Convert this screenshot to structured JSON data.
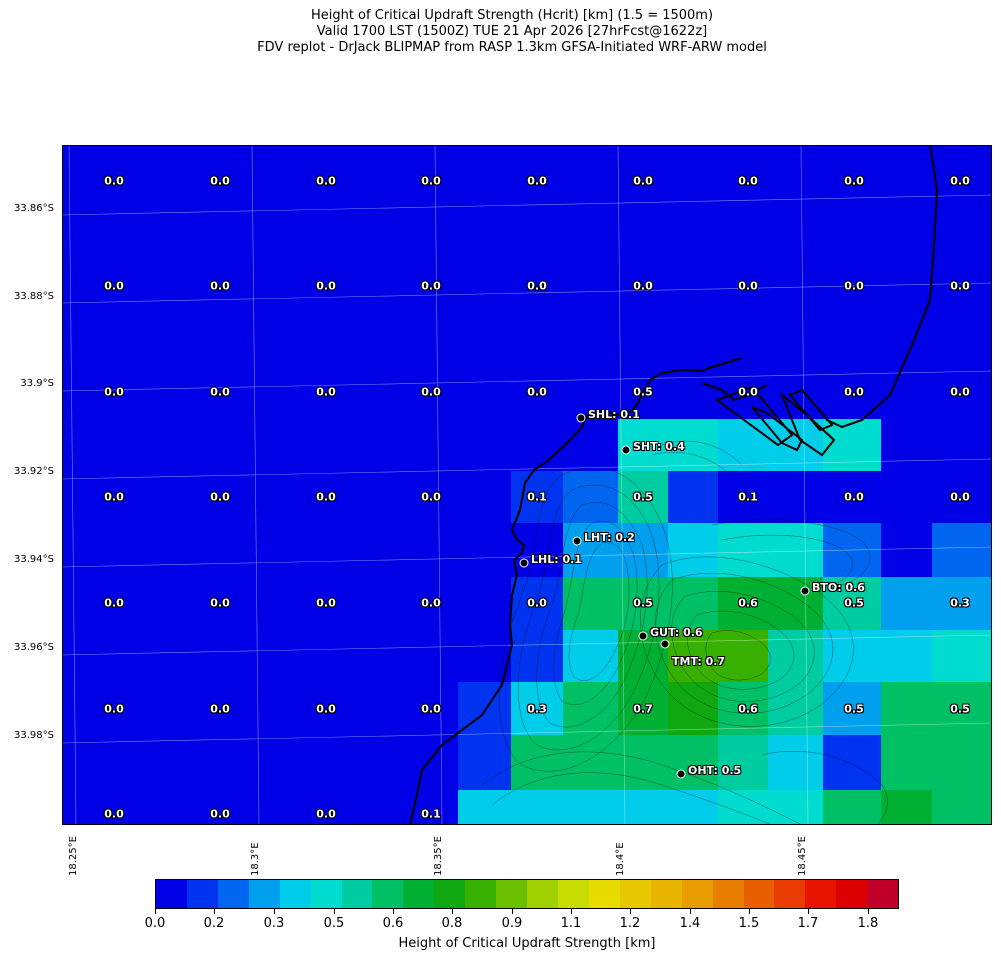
{
  "title": {
    "line1": "Height of Critical Updraft Strength (Hcrit) [km] (1.5 = 1500m)",
    "line2": "Valid 1700 LST (1500Z) TUE 21 Apr 2026 [27hrFcst@1622z]",
    "line3": "FDV replot - DrJack BLIPMAP from RASP 1.3km GFSA-Initiated WRF-ARW model"
  },
  "map": {
    "lat_ticks": [
      "33.86°S",
      "33.88°S",
      "33.9°S",
      "33.92°S",
      "33.94°S",
      "33.96°S",
      "33.98°S"
    ],
    "lon_ticks": [
      "18.25°E",
      "18.3°E",
      "18.35°E",
      "18.4°E",
      "18.45°E"
    ],
    "background_color": "#0000e6",
    "grid_values": [
      [
        "0.0",
        "0.0",
        "0.0",
        "0.0",
        "0.0",
        "0.0",
        "0.0",
        "0.0",
        "0.0"
      ],
      [
        "0.0",
        "0.0",
        "0.0",
        "0.0",
        "0.0",
        "0.0",
        "0.0",
        "0.0",
        "0.0"
      ],
      [
        "0.0",
        "0.0",
        "0.0",
        "0.0",
        "0.0",
        "0.5",
        "0.0",
        "0.0",
        "0.0"
      ],
      [
        "0.0",
        "0.0",
        "0.0",
        "0.0",
        "0.1",
        "0.5",
        "0.1",
        "0.0",
        "0.0"
      ],
      [
        "0.0",
        "0.0",
        "0.0",
        "0.0",
        "0.0",
        "0.5",
        "0.6",
        "0.5",
        "0.3"
      ],
      [
        "0.0",
        "0.0",
        "0.0",
        "0.0",
        "0.3",
        "0.7",
        "0.6",
        "0.5",
        "0.5"
      ],
      [
        "0.0",
        "0.0",
        "0.0",
        "0.1",
        "",
        "",
        "",
        "",
        ""
      ]
    ],
    "sites": [
      {
        "label": "SHL: 0.1"
      },
      {
        "label": "SHT: 0.4"
      },
      {
        "label": "LHT: 0.2"
      },
      {
        "label": "LHL: 0.1"
      },
      {
        "label": "BTO: 0.6"
      },
      {
        "label": "GUT: 0.6"
      },
      {
        "label": "TMT: 0.7"
      },
      {
        "label": "OHT: 0.5"
      }
    ]
  },
  "colorbar": {
    "title": "Height of Critical Updraft Strength [km]",
    "colors": [
      "#0000e6",
      "#0033f0",
      "#0066f0",
      "#00a0ee",
      "#00cdea",
      "#00dccf",
      "#00cca2",
      "#00c066",
      "#00b033",
      "#10a810",
      "#38b000",
      "#6ac000",
      "#a0d000",
      "#c8dc00",
      "#e6dc00",
      "#e8c800",
      "#e8b400",
      "#e89c00",
      "#e87e00",
      "#e85e00",
      "#e83c00",
      "#e81400",
      "#dc0000",
      "#c00028"
    ],
    "tick_labels": [
      "0.0",
      "0.2",
      "0.3",
      "0.5",
      "0.6",
      "0.8",
      "0.9",
      "1.1",
      "1.2",
      "1.4",
      "1.5",
      "1.7",
      "1.8"
    ]
  }
}
